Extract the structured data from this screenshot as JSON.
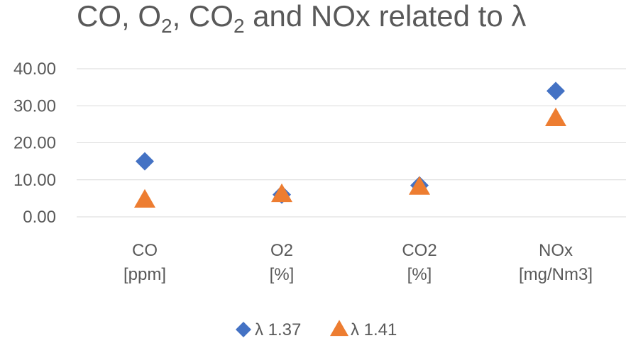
{
  "chart_data": {
    "type": "scatter",
    "title": {
      "prefix": "CO, O",
      "sub1": "2",
      "mid": ", CO",
      "sub2": "2",
      "suffix": " and NOx related to λ"
    },
    "categories": [
      [
        "CO",
        "[ppm]"
      ],
      [
        "O2",
        "[%]"
      ],
      [
        "CO2",
        "[%]"
      ],
      [
        "NOx",
        "[mg/Nm3]"
      ]
    ],
    "yticks": [
      "0.00",
      "10.00",
      "20.00",
      "30.00",
      "40.00"
    ],
    "ylim": [
      0,
      40
    ],
    "grid": true,
    "legend_position": "bottom",
    "series": [
      {
        "name": "λ 1.37",
        "values": [
          15,
          6,
          8.5,
          34
        ],
        "marker": "diamond",
        "color": "#4472C4"
      },
      {
        "name": "λ 1.41",
        "values": [
          4.5,
          6,
          8,
          26.5
        ],
        "marker": "triangle",
        "color": "#ED7D31"
      }
    ]
  }
}
